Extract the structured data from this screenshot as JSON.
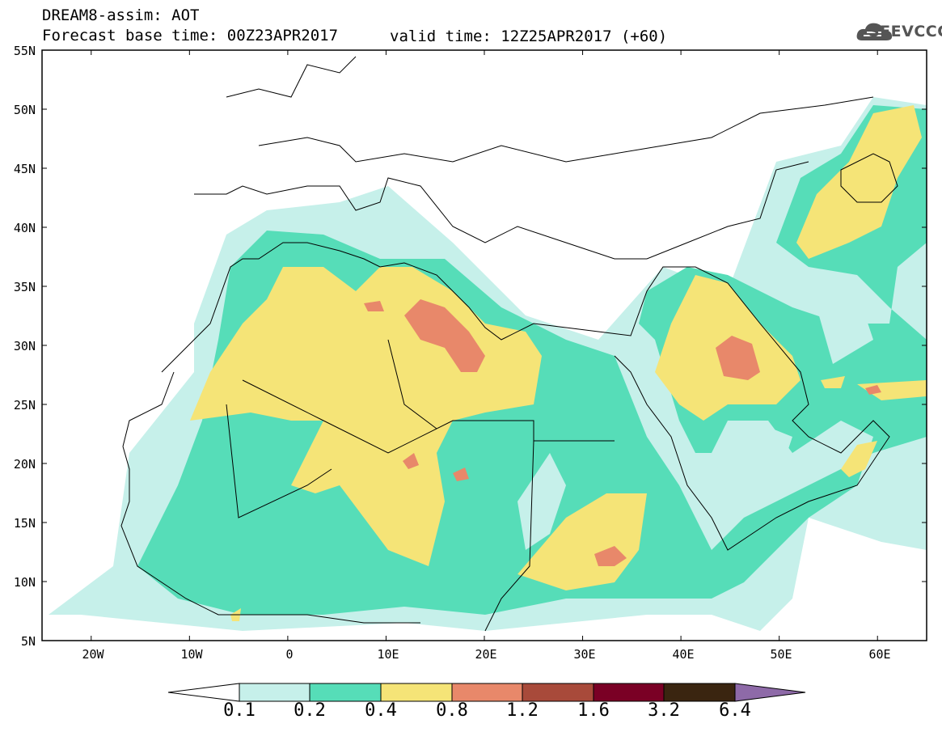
{
  "title": {
    "line1": "DREAM8-assim: AOT",
    "line2": "Forecast base time: 00Z23APR2017",
    "valid": "valid time: 12Z25APR2017 (+60)"
  },
  "logo": {
    "text": "SEEVCCC",
    "icon": "cloud-icon"
  },
  "map": {
    "variable": "AOT",
    "lat_labels": [
      "55N",
      "50N",
      "45N",
      "40N",
      "35N",
      "30N",
      "25N",
      "20N",
      "15N",
      "10N",
      "5N"
    ],
    "lon_labels": [
      "20W",
      "10W",
      "0",
      "10E",
      "20E",
      "30E",
      "40E",
      "50E",
      "60E"
    ],
    "lat_range": [
      5,
      55
    ],
    "lon_range": [
      -25,
      65
    ]
  },
  "colorbar": {
    "labels": [
      "0.1",
      "0.2",
      "0.4",
      "0.8",
      "1.2",
      "1.6",
      "3.2",
      "6.4"
    ],
    "colors": [
      "#ffffff",
      "#c6f0ea",
      "#56ddb8",
      "#f5e477",
      "#e8886a",
      "#a84a3a",
      "#7a0025",
      "#3a2510",
      "#8e6aa8"
    ]
  }
}
